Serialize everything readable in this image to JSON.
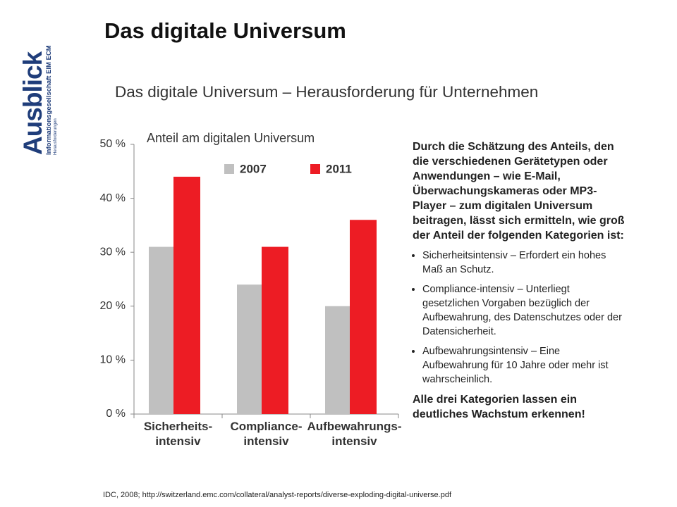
{
  "slide": {
    "title": "Das digitale Universum",
    "logo": {
      "main": "Ausblick",
      "line1": "Informationsgesellschaft EIM ECM",
      "line2": "Herausforderungen"
    },
    "subtitle": "Das digitale Universum – Herausforderung für Unternehmen",
    "source": "IDC, 2008; http://switzerland.emc.com/collateral/analyst-reports/diverse-exploding-digital-universe.pdf"
  },
  "chart_data": {
    "type": "bar",
    "title": "Anteil am digitalen Universum",
    "categories": [
      "Sicherheits-\nintensiv",
      "Compliance-\nintensiv",
      "Aufbewahrungs-\nintensiv"
    ],
    "series": [
      {
        "name": "2007",
        "color": "#c0c0c0",
        "values": [
          31,
          24,
          20
        ]
      },
      {
        "name": "2011",
        "color": "#ed1c24",
        "values": [
          44,
          31,
          36
        ]
      }
    ],
    "ylim": [
      0,
      50
    ],
    "yticks": [
      {
        "value": 0,
        "label": "0 %"
      },
      {
        "value": 10,
        "label": "10 %"
      },
      {
        "value": 20,
        "label": "20 %"
      },
      {
        "value": 30,
        "label": "30 %"
      },
      {
        "value": 40,
        "label": "40 %"
      },
      {
        "value": 50,
        "label": "50 %"
      }
    ],
    "grid": false
  },
  "sidebar": {
    "intro": "Durch die Schätzung des Anteils, den die verschiedenen Gerätetypen oder Anwendungen – wie E-Mail, Überwachungskameras oder MP3-Player – zum digitalen Universum beitragen, lässt sich ermitteln, wie groß der Anteil der folgenden Kategorien ist:",
    "bullets": [
      "Sicherheitsintensiv – Erfordert ein hohes Maß an Schutz.",
      "Compliance-intensiv – Unterliegt gesetzlichen Vorgaben bezüglich der Aufbewahrung, des Datenschutzes oder der Datensicherheit.",
      "Aufbewahrungsintensiv – Eine Aufbewahrung für 10 Jahre oder mehr ist wahrscheinlich."
    ],
    "conclusion": "Alle drei Kategorien lassen ein deutliches Wachstum erkennen!"
  }
}
